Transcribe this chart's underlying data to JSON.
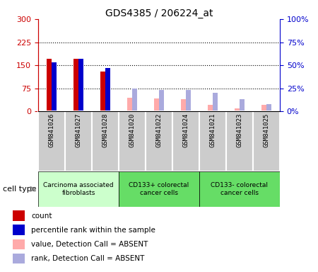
{
  "title": "GDS4385 / 206224_at",
  "samples": [
    "GSM841026",
    "GSM841027",
    "GSM841028",
    "GSM841020",
    "GSM841022",
    "GSM841024",
    "GSM841021",
    "GSM841023",
    "GSM841025"
  ],
  "groups": [
    {
      "label": "Carcinoma associated\nfibroblasts",
      "indices": [
        0,
        1,
        2
      ],
      "color": "#ccffcc"
    },
    {
      "label": "CD133+ colorectal\ncancer cells",
      "indices": [
        3,
        4,
        5
      ],
      "color": "#66ff66"
    },
    {
      "label": "CD133- colorectal\ncancer cells",
      "indices": [
        6,
        7,
        8
      ],
      "color": "#66ff66"
    }
  ],
  "count_values": [
    170,
    170,
    130,
    0,
    0,
    0,
    0,
    0,
    0
  ],
  "count_absent": [
    false,
    false,
    false,
    true,
    true,
    true,
    true,
    true,
    true
  ],
  "count_absent_values": [
    0,
    0,
    0,
    45,
    42,
    40,
    22,
    10,
    22
  ],
  "rank_values": [
    53,
    57,
    47,
    0,
    0,
    0,
    0,
    0,
    0
  ],
  "rank_absent": [
    false,
    false,
    false,
    true,
    true,
    true,
    true,
    true,
    true
  ],
  "rank_absent_values": [
    0,
    0,
    0,
    25,
    23,
    23,
    20,
    13,
    8
  ],
  "ylim_left": [
    0,
    300
  ],
  "ylim_right": [
    0,
    100
  ],
  "yticks_left": [
    0,
    75,
    150,
    225,
    300
  ],
  "yticks_right": [
    0,
    25,
    50,
    75,
    100
  ],
  "ytick_labels_left": [
    "0",
    "75",
    "150",
    "225",
    "300"
  ],
  "ytick_labels_right": [
    "0%",
    "25%",
    "50%",
    "75%",
    "100%"
  ],
  "colors": {
    "count_present": "#cc0000",
    "rank_present": "#0000cc",
    "count_absent": "#ffaaaa",
    "rank_absent": "#aaaadd",
    "grid": "black",
    "bg_plot": "white",
    "bg_xticklabels": "#dddddd",
    "left_axis": "#cc0000",
    "right_axis": "#0000cc"
  },
  "legend_items": [
    {
      "color": "#cc0000",
      "label": "count"
    },
    {
      "color": "#0000cc",
      "label": "percentile rank within the sample"
    },
    {
      "color": "#ffaaaa",
      "label": "value, Detection Call = ABSENT"
    },
    {
      "color": "#aaaadd",
      "label": "rank, Detection Call = ABSENT"
    }
  ]
}
